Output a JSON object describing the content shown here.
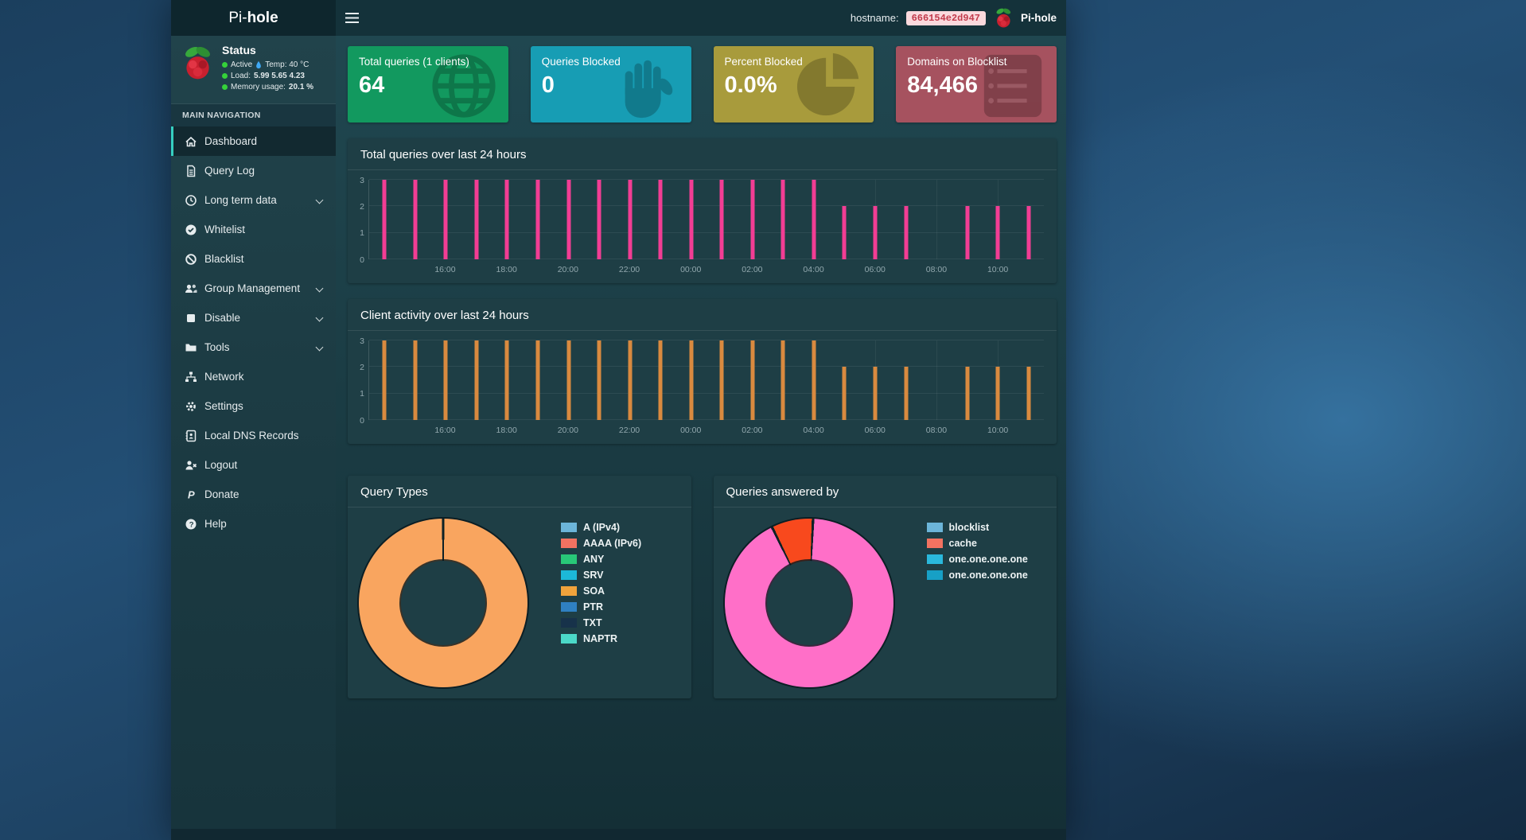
{
  "navbar": {
    "brand_prefix": "Pi-",
    "brand_bold": "hole",
    "hostname_label": "hostname:",
    "hostname_value": "666154e2d947",
    "app_name": "Pi-hole"
  },
  "sidebar": {
    "status": {
      "title": "Status",
      "active": "Active",
      "temp": "Temp: 40 °C",
      "load_label": "Load:",
      "load": "5.99  5.65  4.23",
      "memory_label": "Memory usage:",
      "memory": "20.1 %"
    },
    "section_label": "MAIN NAVIGATION",
    "items": [
      {
        "label": "Dashboard",
        "active": true
      },
      {
        "label": "Query Log"
      },
      {
        "label": "Long term data",
        "expandable": true
      },
      {
        "label": "Whitelist"
      },
      {
        "label": "Blacklist"
      },
      {
        "label": "Group Management",
        "expandable": true
      },
      {
        "label": "Disable",
        "expandable": true
      },
      {
        "label": "Tools",
        "expandable": true
      },
      {
        "label": "Network"
      },
      {
        "label": "Settings"
      },
      {
        "label": "Local DNS Records"
      },
      {
        "label": "Logout"
      },
      {
        "label": "Donate"
      },
      {
        "label": "Help"
      }
    ]
  },
  "cards": [
    {
      "label": "Total queries (1 clients)",
      "value": "64",
      "color": "#12995f",
      "icon": "globe"
    },
    {
      "label": "Queries Blocked",
      "value": "0",
      "color": "#179db4",
      "icon": "hand"
    },
    {
      "label": "Percent Blocked",
      "value": "0.0%",
      "color": "#a89b3c",
      "icon": "pie-chart"
    },
    {
      "label": "Domains on Blocklist",
      "value": "84,466",
      "color": "#a6525f",
      "icon": "list"
    }
  ],
  "chart_data": [
    {
      "id": "total_queries_over_time",
      "type": "bar",
      "title": "Total queries over last 24 hours",
      "bar_color": "#f23d94",
      "ymax": 3,
      "yticks": [
        3,
        2,
        1,
        0
      ],
      "slot_minutes": 60,
      "first_slot": "14:00",
      "values": [
        3,
        3,
        3,
        3,
        3,
        3,
        3,
        3,
        3,
        3,
        3,
        3,
        3,
        3,
        3,
        2,
        2,
        2,
        0,
        2,
        2,
        2
      ],
      "ticks": [
        {
          "index": 2,
          "label": "16:00"
        },
        {
          "index": 4,
          "label": "18:00"
        },
        {
          "index": 6,
          "label": "20:00"
        },
        {
          "index": 8,
          "label": "22:00"
        },
        {
          "index": 10,
          "label": "00:00"
        },
        {
          "index": 12,
          "label": "02:00"
        },
        {
          "index": 14,
          "label": "04:00"
        },
        {
          "index": 16,
          "label": "06:00"
        },
        {
          "index": 18,
          "label": "08:00"
        },
        {
          "index": 20,
          "label": "10:00"
        }
      ]
    },
    {
      "id": "client_activity_over_time",
      "type": "bar",
      "title": "Client activity over last 24 hours",
      "bar_color": "#d98a3f",
      "ymax": 3,
      "yticks": [
        3,
        2,
        1,
        0
      ],
      "slot_minutes": 60,
      "first_slot": "14:00",
      "values": [
        3,
        3,
        3,
        3,
        3,
        3,
        3,
        3,
        3,
        3,
        3,
        3,
        3,
        3,
        3,
        2,
        2,
        2,
        0,
        2,
        2,
        2
      ],
      "ticks": [
        {
          "index": 2,
          "label": "16:00"
        },
        {
          "index": 4,
          "label": "18:00"
        },
        {
          "index": 6,
          "label": "20:00"
        },
        {
          "index": 8,
          "label": "22:00"
        },
        {
          "index": 10,
          "label": "00:00"
        },
        {
          "index": 12,
          "label": "02:00"
        },
        {
          "index": 14,
          "label": "04:00"
        },
        {
          "index": 16,
          "label": "06:00"
        },
        {
          "index": 18,
          "label": "08:00"
        },
        {
          "index": 20,
          "label": "10:00"
        }
      ]
    },
    {
      "id": "query_types",
      "type": "doughnut",
      "title": "Query Types",
      "start_deg": -0.9,
      "segments": [
        {
          "label": "SOA",
          "value": 100,
          "color": "#f9a55f"
        }
      ],
      "legend": [
        {
          "label": "A (IPv4)",
          "color": "#6cb5d9"
        },
        {
          "label": "AAAA (IPv6)",
          "color": "#f27261"
        },
        {
          "label": "ANY",
          "color": "#28c878"
        },
        {
          "label": "SRV",
          "color": "#1cb8d8"
        },
        {
          "label": "SOA",
          "color": "#f0a33c"
        },
        {
          "label": "PTR",
          "color": "#2f80c1"
        },
        {
          "label": "TXT",
          "color": "#17324a"
        },
        {
          "label": "NAPTR",
          "color": "#4bd8c8"
        }
      ]
    },
    {
      "id": "queries_answered_by",
      "type": "doughnut",
      "title": "Queries answered by",
      "start_deg": -27,
      "segments": [
        {
          "label": "cache",
          "value": 8,
          "color": "#f8491d"
        },
        {
          "label": "one.one.one.one",
          "value": 92,
          "color": "#ff6fc8"
        }
      ],
      "legend": [
        {
          "label": "blocklist",
          "color": "#6cb5d9"
        },
        {
          "label": "cache",
          "color": "#f27261"
        },
        {
          "label": "one.one.one.one",
          "color": "#2ab8dc"
        },
        {
          "label": "one.one.one.one",
          "color": "#17a0c6"
        }
      ]
    }
  ]
}
